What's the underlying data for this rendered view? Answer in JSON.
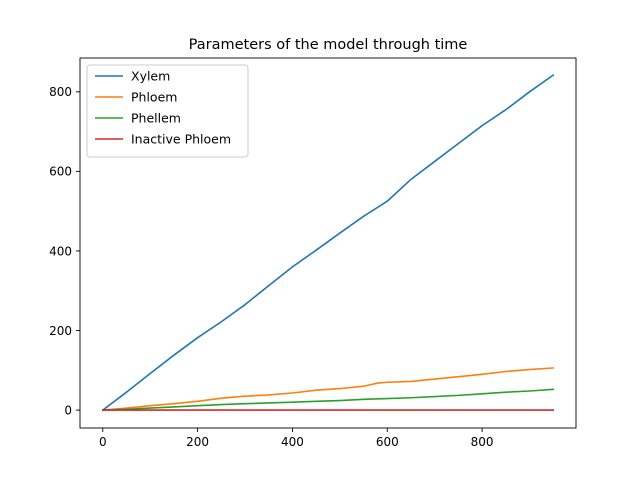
{
  "chart_data": {
    "type": "line",
    "title": "Parameters of the model through time",
    "xlabel": "",
    "ylabel": "",
    "xlim": [
      -48,
      998
    ],
    "ylim": [
      -45,
      885
    ],
    "xticks": [
      0,
      200,
      400,
      600,
      800
    ],
    "yticks": [
      0,
      200,
      400,
      600,
      800
    ],
    "grid": false,
    "legend_position": "top-left",
    "series": [
      {
        "name": "Xylem",
        "color": "#1f77b4",
        "x": [
          0,
          50,
          100,
          150,
          200,
          250,
          300,
          350,
          400,
          450,
          500,
          550,
          600,
          650,
          700,
          750,
          800,
          850,
          900,
          950
        ],
        "y": [
          0,
          45,
          92,
          138,
          182,
          222,
          265,
          313,
          360,
          402,
          445,
          487,
          525,
          580,
          625,
          670,
          715,
          755,
          800,
          842
        ]
      },
      {
        "name": "Phloem",
        "color": "#ff7f0e",
        "x": [
          0,
          50,
          100,
          150,
          200,
          250,
          300,
          350,
          400,
          450,
          500,
          550,
          580,
          600,
          650,
          700,
          750,
          800,
          850,
          900,
          950
        ],
        "y": [
          0,
          5,
          11,
          16,
          22,
          30,
          35,
          38,
          43,
          50,
          54,
          60,
          68,
          70,
          72,
          78,
          84,
          90,
          97,
          102,
          106
        ]
      },
      {
        "name": "Phellem",
        "color": "#2ca02c",
        "x": [
          0,
          50,
          100,
          150,
          200,
          250,
          300,
          350,
          400,
          450,
          500,
          550,
          600,
          650,
          700,
          750,
          800,
          850,
          900,
          950
        ],
        "y": [
          0,
          2,
          5,
          8,
          11,
          14,
          16,
          18,
          20,
          22,
          24,
          27,
          29,
          31,
          34,
          37,
          41,
          45,
          48,
          52
        ]
      },
      {
        "name": "Inactive Phloem",
        "color": "#d62728",
        "x": [
          0,
          950
        ],
        "y": [
          0,
          0
        ]
      }
    ]
  }
}
